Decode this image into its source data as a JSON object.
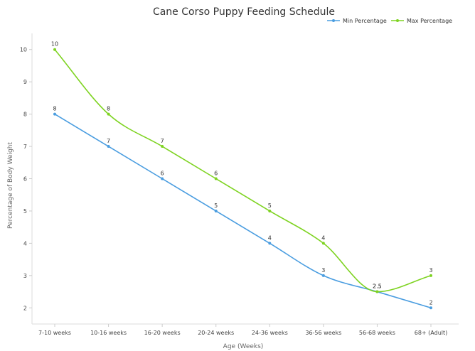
{
  "chart_data": {
    "type": "line",
    "title": "Cane Corso Puppy Feeding Schedule",
    "xlabel": "Age (Weeks)",
    "ylabel": "Percentage of Body Weight",
    "categories": [
      "7-10 weeks",
      "10-16 weeks",
      "16-20 weeks",
      "20-24 weeks",
      "24-36 weeks",
      "36-56 weeks",
      "56-68 weeks",
      "68+ (Adult)"
    ],
    "ylim": [
      1.5,
      10.5
    ],
    "yticks": [
      2,
      3,
      4,
      5,
      6,
      7,
      8,
      9,
      10
    ],
    "grid": false,
    "legend_position": "top-right",
    "series": [
      {
        "name": "Min Percentage",
        "color": "#4a9de0",
        "values": [
          8,
          7,
          6,
          5,
          4,
          3,
          2.5,
          2
        ],
        "labels": [
          "8",
          "7",
          "6",
          "5",
          "4",
          "3",
          "2.5",
          "2"
        ]
      },
      {
        "name": "Max Percentage",
        "color": "#7ed321",
        "values": [
          10,
          8,
          7,
          6,
          5,
          4,
          2.5,
          3
        ],
        "labels": [
          "10",
          "8",
          "7",
          "6",
          "5",
          "4",
          "2.5",
          "3"
        ]
      }
    ]
  }
}
